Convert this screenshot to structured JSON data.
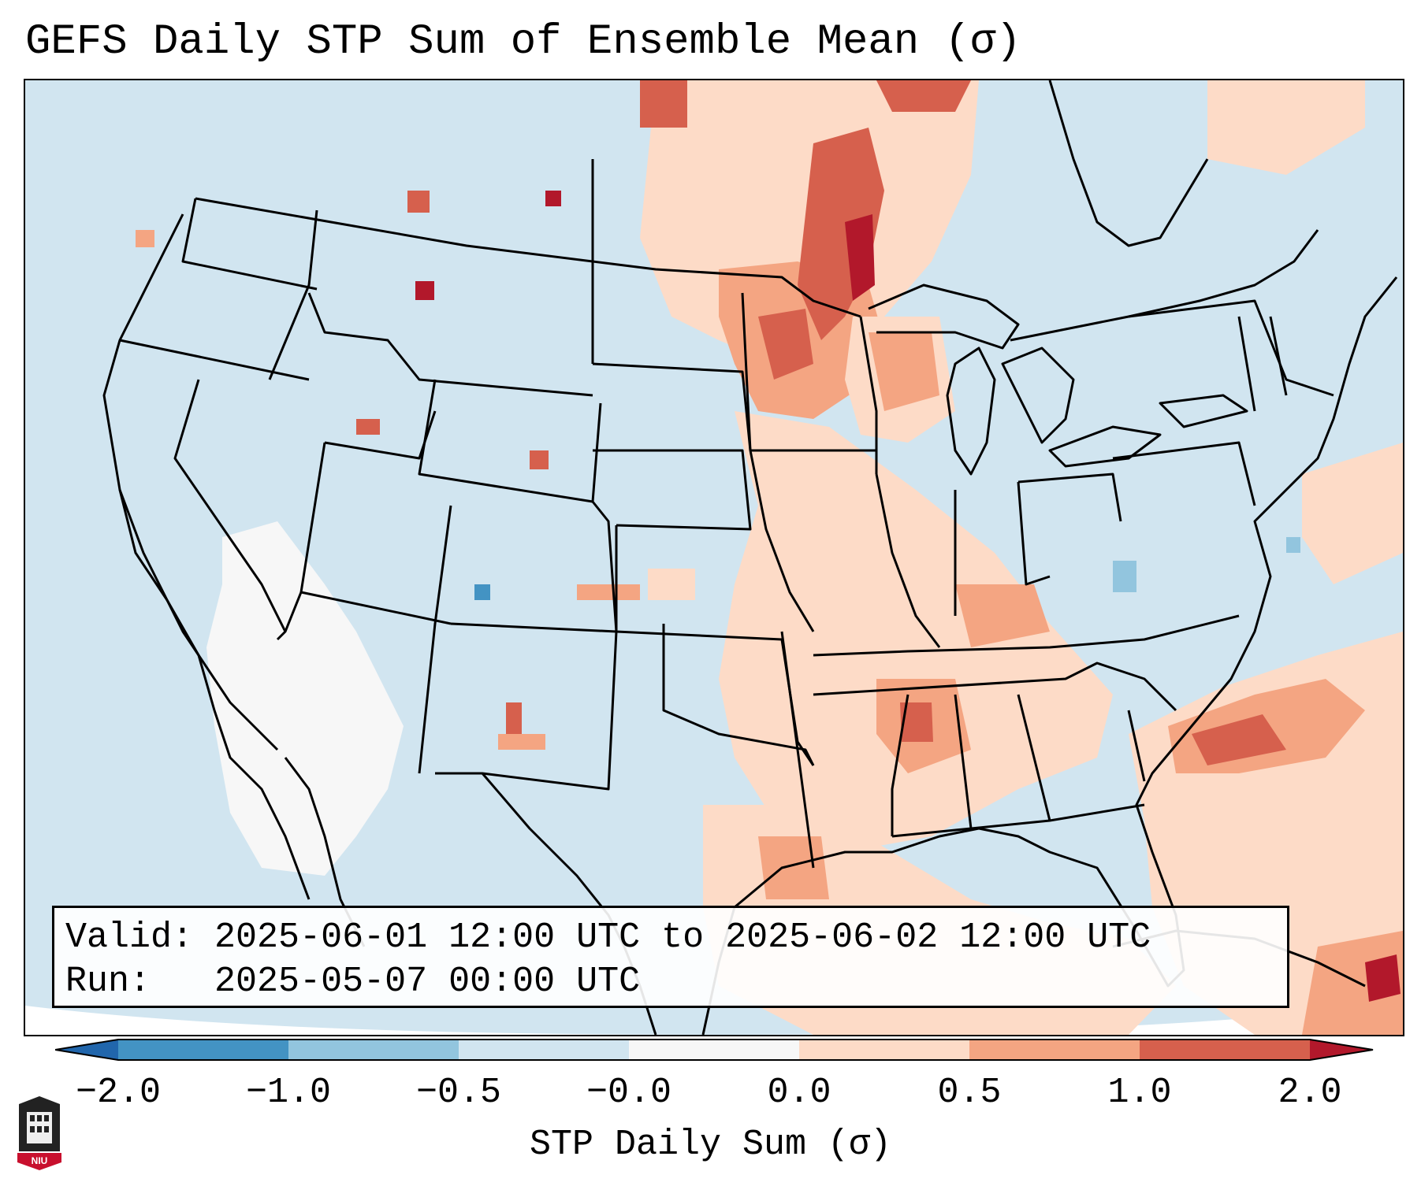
{
  "title": "GEFS Daily STP Sum of Ensemble Mean (σ)",
  "info": {
    "valid_label": "Valid:",
    "valid_value": "2025-06-01 12:00 UTC to 2025-06-02 12:00 UTC",
    "run_label": "Run:",
    "run_value": "2025-05-07 00:00 UTC"
  },
  "colorbar": {
    "label": "STP Daily Sum (σ)",
    "ticks": [
      "−2.0",
      "−1.0",
      "−0.5",
      "−0.0",
      "0.0",
      "0.5",
      "1.0",
      "2.0"
    ],
    "colors": {
      "extend_low": "#2166ac",
      "bins": [
        "#4393c3",
        "#92c5de",
        "#d1e5f0",
        "#f7f7f7",
        "#fddbc7",
        "#f4a582",
        "#d6604d"
      ],
      "extend_high": "#b2182b"
    }
  },
  "logo": {
    "text": "NIU"
  },
  "colors": {
    "land": "#d1e5f0",
    "border": "#000000"
  }
}
